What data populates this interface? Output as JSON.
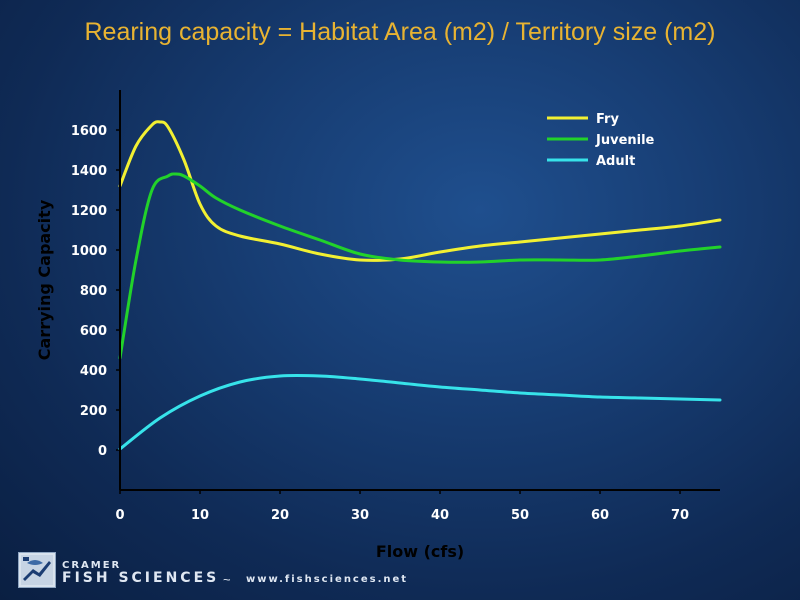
{
  "header": {
    "title": "Rearing capacity = Habitat Area (m2) / Territory size (m2)"
  },
  "footer": {
    "brand_top": "CRAMER",
    "brand_main": "FISH SCIENCES",
    "separator": "~",
    "url": "www.fishsciences.net"
  },
  "colors": {
    "title": "#e8b332",
    "fry": "#f2f032",
    "juvenile": "#22d22a",
    "adult": "#37e3ea",
    "axis": "#000000"
  },
  "chart_data": {
    "type": "line",
    "xlabel": "Flow (cfs)",
    "ylabel": "Carrying Capacity",
    "xlim": [
      0,
      75
    ],
    "ylim": [
      -200,
      1800
    ],
    "xticks": [
      0,
      10,
      20,
      30,
      40,
      50,
      60,
      70
    ],
    "yticks": [
      0,
      200,
      400,
      600,
      800,
      1000,
      1200,
      1400,
      1600
    ],
    "legend_position": "top-right",
    "series": [
      {
        "name": "Fry",
        "color": "#f2f032",
        "x": [
          0,
          2,
          4,
          5,
          6,
          8,
          10,
          12,
          15,
          20,
          25,
          30,
          35,
          40,
          45,
          50,
          55,
          60,
          65,
          70,
          75
        ],
        "y": [
          1320,
          1520,
          1625,
          1640,
          1615,
          1450,
          1230,
          1120,
          1070,
          1030,
          980,
          950,
          955,
          990,
          1020,
          1040,
          1060,
          1080,
          1100,
          1120,
          1150
        ]
      },
      {
        "name": "Juvenile",
        "color": "#22d22a",
        "x": [
          0,
          2,
          4,
          6,
          7,
          8,
          10,
          12,
          15,
          20,
          25,
          30,
          35,
          40,
          45,
          50,
          55,
          60,
          65,
          70,
          75
        ],
        "y": [
          460,
          950,
          1300,
          1370,
          1380,
          1370,
          1320,
          1260,
          1200,
          1120,
          1050,
          980,
          950,
          940,
          940,
          950,
          950,
          950,
          970,
          995,
          1015
        ]
      },
      {
        "name": "Adult",
        "color": "#37e3ea",
        "x": [
          0,
          5,
          10,
          15,
          20,
          25,
          30,
          35,
          40,
          45,
          50,
          55,
          60,
          65,
          70,
          75
        ],
        "y": [
          5,
          160,
          270,
          340,
          370,
          370,
          355,
          335,
          315,
          300,
          285,
          275,
          265,
          260,
          255,
          250
        ]
      }
    ]
  }
}
